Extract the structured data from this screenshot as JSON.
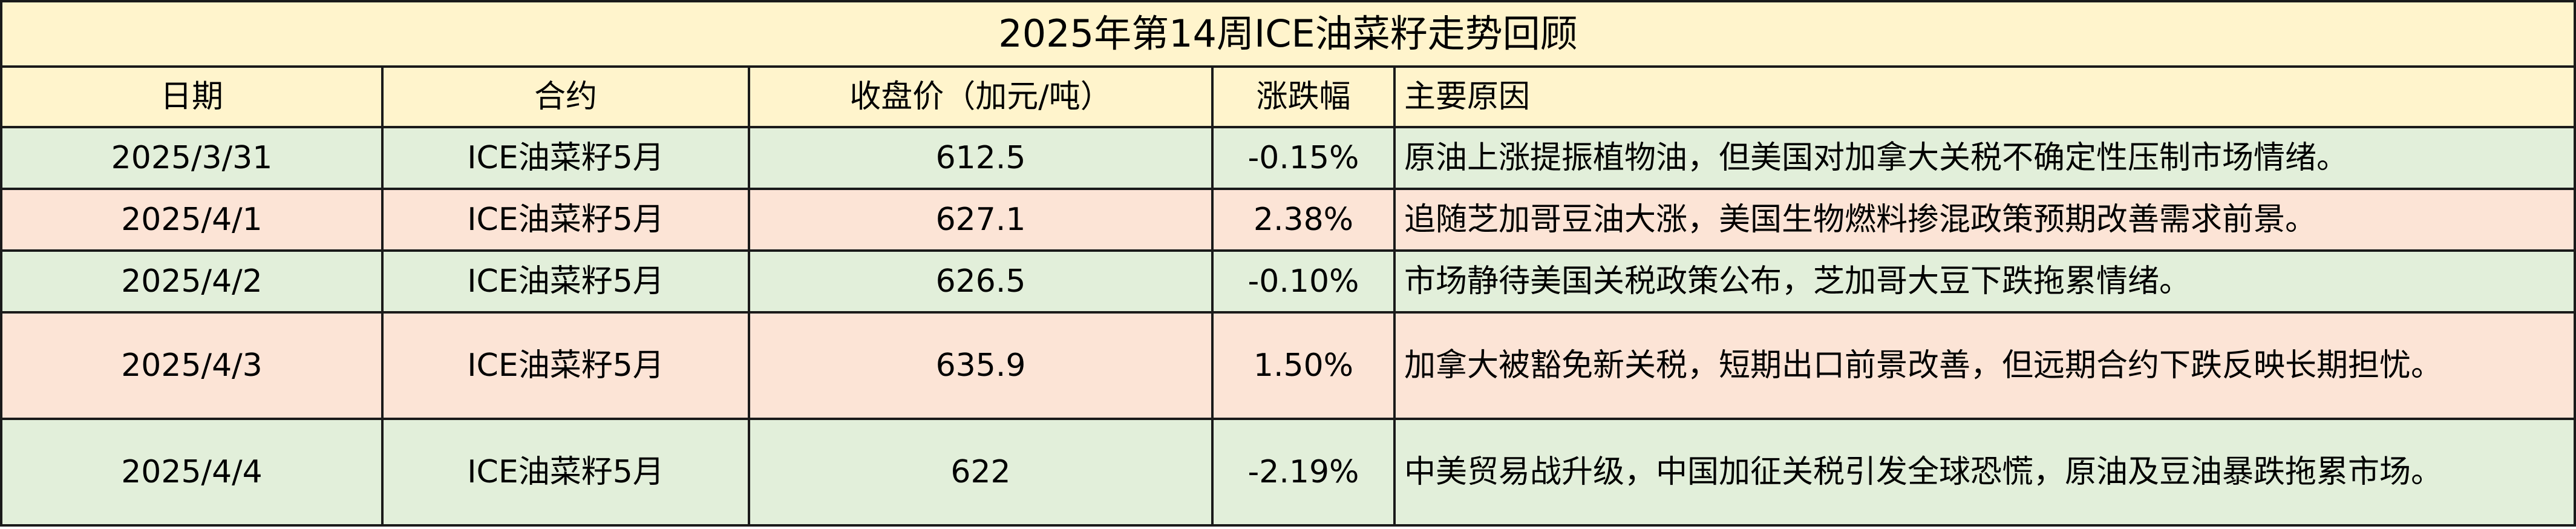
{
  "title": "2025年第14周ICE油菜籽走势回顾",
  "colors": {
    "header_bg": "#fff4cc",
    "down_row_bg": "#e2efda",
    "up_row_bg": "#fce4d6"
  },
  "columns": [
    "日期",
    "合约",
    "收盘价（加元/吨）",
    "涨跌幅",
    "主要原因"
  ],
  "rows": [
    {
      "date": "2025/3/31",
      "contract": "ICE油菜籽5月",
      "close": "612.5",
      "change": "-0.15%",
      "reason": "原油上涨提振植物油，但美国对加拿大关税不确定性压制市场情绪。"
    },
    {
      "date": "2025/4/1",
      "contract": "ICE油菜籽5月",
      "close": "627.1",
      "change": "2.38%",
      "reason": "追随芝加哥豆油大涨，美国生物燃料掺混政策预期改善需求前景。"
    },
    {
      "date": "2025/4/2",
      "contract": "ICE油菜籽5月",
      "close": "626.5",
      "change": "-0.10%",
      "reason": "市场静待美国关税政策公布，芝加哥大豆下跌拖累情绪。"
    },
    {
      "date": "2025/4/3",
      "contract": "ICE油菜籽5月",
      "close": "635.9",
      "change": "1.50%",
      "reason": "加拿大被豁免新关税，短期出口前景改善，但远期合约下跌反映长期担忧。"
    },
    {
      "date": "2025/4/4",
      "contract": "ICE油菜籽5月",
      "close": "622",
      "change": "-2.19%",
      "reason": "中美贸易战升级，中国加征关税引发全球恐慌，原油及豆油暴跌拖累市场。"
    }
  ]
}
